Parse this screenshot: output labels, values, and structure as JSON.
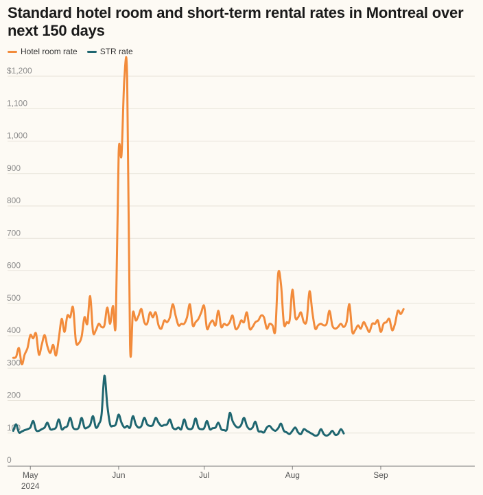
{
  "chart_data": {
    "type": "line",
    "title": "Standard hotel room and short-term rental rates in Montreal over next 150 days",
    "xlabel": "",
    "ylabel": "",
    "ylim": [
      0,
      1200
    ],
    "y_ticks": [
      0,
      100,
      200,
      300,
      400,
      500,
      600,
      700,
      800,
      900,
      1000,
      1100,
      1200
    ],
    "y_tick_labels": [
      "0",
      "100",
      "200",
      "300",
      "400",
      "500",
      "600",
      "700",
      "800",
      "900",
      "1,000",
      "1,100",
      "$1,200"
    ],
    "x_range_days": [
      -8,
      156
    ],
    "x_ticks": [
      {
        "day": 0,
        "label": "May",
        "sublabel": "2024"
      },
      {
        "day": 31,
        "label": "Jun",
        "sublabel": ""
      },
      {
        "day": 61,
        "label": "Jul",
        "sublabel": ""
      },
      {
        "day": 92,
        "label": "Aug",
        "sublabel": ""
      },
      {
        "day": 123,
        "label": "Sep",
        "sublabel": ""
      }
    ],
    "legend_placement": "top-left",
    "series": [
      {
        "name": "Hotel room rate",
        "color": "#f28b3b",
        "points": [
          [
            -6,
            315
          ],
          [
            -5,
            318
          ],
          [
            -4,
            345
          ],
          [
            -3,
            295
          ],
          [
            -2,
            325
          ],
          [
            -1,
            345
          ],
          [
            0,
            385
          ],
          [
            1,
            375
          ],
          [
            2,
            390
          ],
          [
            3,
            325
          ],
          [
            4,
            355
          ],
          [
            5,
            385
          ],
          [
            6,
            350
          ],
          [
            7,
            330
          ],
          [
            8,
            355
          ],
          [
            9,
            322
          ],
          [
            10,
            375
          ],
          [
            11,
            435
          ],
          [
            12,
            395
          ],
          [
            13,
            445
          ],
          [
            14,
            440
          ],
          [
            15,
            470
          ],
          [
            16,
            365
          ],
          [
            17,
            360
          ],
          [
            18,
            380
          ],
          [
            19,
            440
          ],
          [
            20,
            420
          ],
          [
            21,
            505
          ],
          [
            22,
            395
          ],
          [
            23,
            400
          ],
          [
            24,
            420
          ],
          [
            25,
            410
          ],
          [
            26,
            415
          ],
          [
            27,
            470
          ],
          [
            28,
            420
          ],
          [
            29,
            475
          ],
          [
            30,
            425
          ],
          [
            31,
            945
          ],
          [
            32,
            940
          ],
          [
            33,
            1175
          ],
          [
            34,
            1170
          ],
          [
            35,
            355
          ],
          [
            36,
            455
          ],
          [
            37,
            430
          ],
          [
            38,
            445
          ],
          [
            39,
            465
          ],
          [
            40,
            425
          ],
          [
            41,
            420
          ],
          [
            42,
            455
          ],
          [
            43,
            440
          ],
          [
            44,
            455
          ],
          [
            45,
            415
          ],
          [
            46,
            405
          ],
          [
            47,
            430
          ],
          [
            48,
            425
          ],
          [
            49,
            440
          ],
          [
            50,
            480
          ],
          [
            51,
            445
          ],
          [
            52,
            415
          ],
          [
            53,
            420
          ],
          [
            54,
            420
          ],
          [
            55,
            440
          ],
          [
            56,
            480
          ],
          [
            57,
            415
          ],
          [
            58,
            425
          ],
          [
            59,
            435
          ],
          [
            60,
            455
          ],
          [
            61,
            475
          ],
          [
            62,
            405
          ],
          [
            63,
            420
          ],
          [
            64,
            430
          ],
          [
            65,
            415
          ],
          [
            66,
            460
          ],
          [
            67,
            410
          ],
          [
            68,
            420
          ],
          [
            69,
            415
          ],
          [
            70,
            425
          ],
          [
            71,
            445
          ],
          [
            72,
            405
          ],
          [
            73,
            410
          ],
          [
            74,
            430
          ],
          [
            75,
            425
          ],
          [
            76,
            455
          ],
          [
            77,
            405
          ],
          [
            78,
            410
          ],
          [
            79,
            425
          ],
          [
            80,
            430
          ],
          [
            81,
            445
          ],
          [
            82,
            440
          ],
          [
            83,
            405
          ],
          [
            84,
            420
          ],
          [
            85,
            415
          ],
          [
            86,
            400
          ],
          [
            87,
            575
          ],
          [
            88,
            540
          ],
          [
            89,
            420
          ],
          [
            90,
            425
          ],
          [
            91,
            430
          ],
          [
            92,
            525
          ],
          [
            93,
            440
          ],
          [
            94,
            440
          ],
          [
            95,
            455
          ],
          [
            96,
            425
          ],
          [
            97,
            430
          ],
          [
            98,
            520
          ],
          [
            99,
            455
          ],
          [
            100,
            405
          ],
          [
            101,
            415
          ],
          [
            102,
            420
          ],
          [
            103,
            415
          ],
          [
            104,
            420
          ],
          [
            105,
            460
          ],
          [
            106,
            415
          ],
          [
            107,
            405
          ],
          [
            108,
            410
          ],
          [
            109,
            420
          ],
          [
            110,
            410
          ],
          [
            111,
            425
          ],
          [
            112,
            480
          ],
          [
            113,
            395
          ],
          [
            114,
            400
          ],
          [
            115,
            415
          ],
          [
            116,
            405
          ],
          [
            117,
            425
          ],
          [
            118,
            410
          ],
          [
            119,
            395
          ],
          [
            120,
            420
          ],
          [
            121,
            420
          ],
          [
            122,
            430
          ],
          [
            123,
            395
          ],
          [
            124,
            420
          ],
          [
            125,
            425
          ],
          [
            126,
            435
          ],
          [
            127,
            400
          ],
          [
            128,
            420
          ],
          [
            129,
            460
          ],
          [
            130,
            450
          ],
          [
            131,
            465
          ]
        ]
      },
      {
        "name": "STR rate",
        "color": "#1f6670",
        "points": [
          [
            -6,
            90
          ],
          [
            -5,
            110
          ],
          [
            -4,
            85
          ],
          [
            -3,
            88
          ],
          [
            -2,
            92
          ],
          [
            -1,
            95
          ],
          [
            0,
            100
          ],
          [
            1,
            120
          ],
          [
            2,
            92
          ],
          [
            3,
            90
          ],
          [
            4,
            95
          ],
          [
            5,
            100
          ],
          [
            6,
            115
          ],
          [
            7,
            95
          ],
          [
            8,
            95
          ],
          [
            9,
            100
          ],
          [
            10,
            125
          ],
          [
            11,
            95
          ],
          [
            12,
            100
          ],
          [
            13,
            105
          ],
          [
            14,
            130
          ],
          [
            15,
            100
          ],
          [
            16,
            95
          ],
          [
            17,
            100
          ],
          [
            18,
            130
          ],
          [
            19,
            100
          ],
          [
            20,
            100
          ],
          [
            21,
            108
          ],
          [
            22,
            135
          ],
          [
            23,
            100
          ],
          [
            24,
            110
          ],
          [
            25,
            140
          ],
          [
            26,
            260
          ],
          [
            27,
            170
          ],
          [
            28,
            110
          ],
          [
            29,
            105
          ],
          [
            30,
            110
          ],
          [
            31,
            140
          ],
          [
            32,
            115
          ],
          [
            33,
            100
          ],
          [
            34,
            105
          ],
          [
            35,
            100
          ],
          [
            36,
            135
          ],
          [
            37,
            110
          ],
          [
            38,
            100
          ],
          [
            39,
            105
          ],
          [
            40,
            130
          ],
          [
            41,
            110
          ],
          [
            42,
            105
          ],
          [
            43,
            108
          ],
          [
            44,
            130
          ],
          [
            45,
            115
          ],
          [
            46,
            105
          ],
          [
            47,
            108
          ],
          [
            48,
            110
          ],
          [
            49,
            125
          ],
          [
            50,
            100
          ],
          [
            51,
            95
          ],
          [
            52,
            100
          ],
          [
            53,
            95
          ],
          [
            54,
            125
          ],
          [
            55,
            100
          ],
          [
            56,
            95
          ],
          [
            57,
            100
          ],
          [
            58,
            128
          ],
          [
            59,
            100
          ],
          [
            60,
            95
          ],
          [
            61,
            98
          ],
          [
            62,
            120
          ],
          [
            63,
            95
          ],
          [
            64,
            98
          ],
          [
            65,
            100
          ],
          [
            66,
            115
          ],
          [
            67,
            95
          ],
          [
            68,
            92
          ],
          [
            69,
            95
          ],
          [
            70,
            145
          ],
          [
            71,
            120
          ],
          [
            72,
            105
          ],
          [
            73,
            100
          ],
          [
            74,
            108
          ],
          [
            75,
            130
          ],
          [
            76,
            105
          ],
          [
            77,
            95
          ],
          [
            78,
            100
          ],
          [
            79,
            118
          ],
          [
            80,
            90
          ],
          [
            81,
            88
          ],
          [
            82,
            85
          ],
          [
            83,
            100
          ],
          [
            84,
            105
          ],
          [
            85,
            95
          ],
          [
            86,
            90
          ],
          [
            87,
            98
          ],
          [
            88,
            112
          ],
          [
            89,
            90
          ],
          [
            90,
            85
          ],
          [
            91,
            80
          ],
          [
            92,
            90
          ],
          [
            93,
            100
          ],
          [
            94,
            85
          ],
          [
            95,
            80
          ],
          [
            96,
            95
          ],
          [
            97,
            90
          ],
          [
            98,
            85
          ],
          [
            99,
            80
          ],
          [
            100,
            75
          ],
          [
            101,
            78
          ],
          [
            102,
            95
          ],
          [
            103,
            80
          ],
          [
            104,
            75
          ],
          [
            105,
            80
          ],
          [
            106,
            90
          ],
          [
            107,
            78
          ],
          [
            108,
            80
          ],
          [
            109,
            95
          ],
          [
            110,
            82
          ]
        ]
      }
    ]
  }
}
